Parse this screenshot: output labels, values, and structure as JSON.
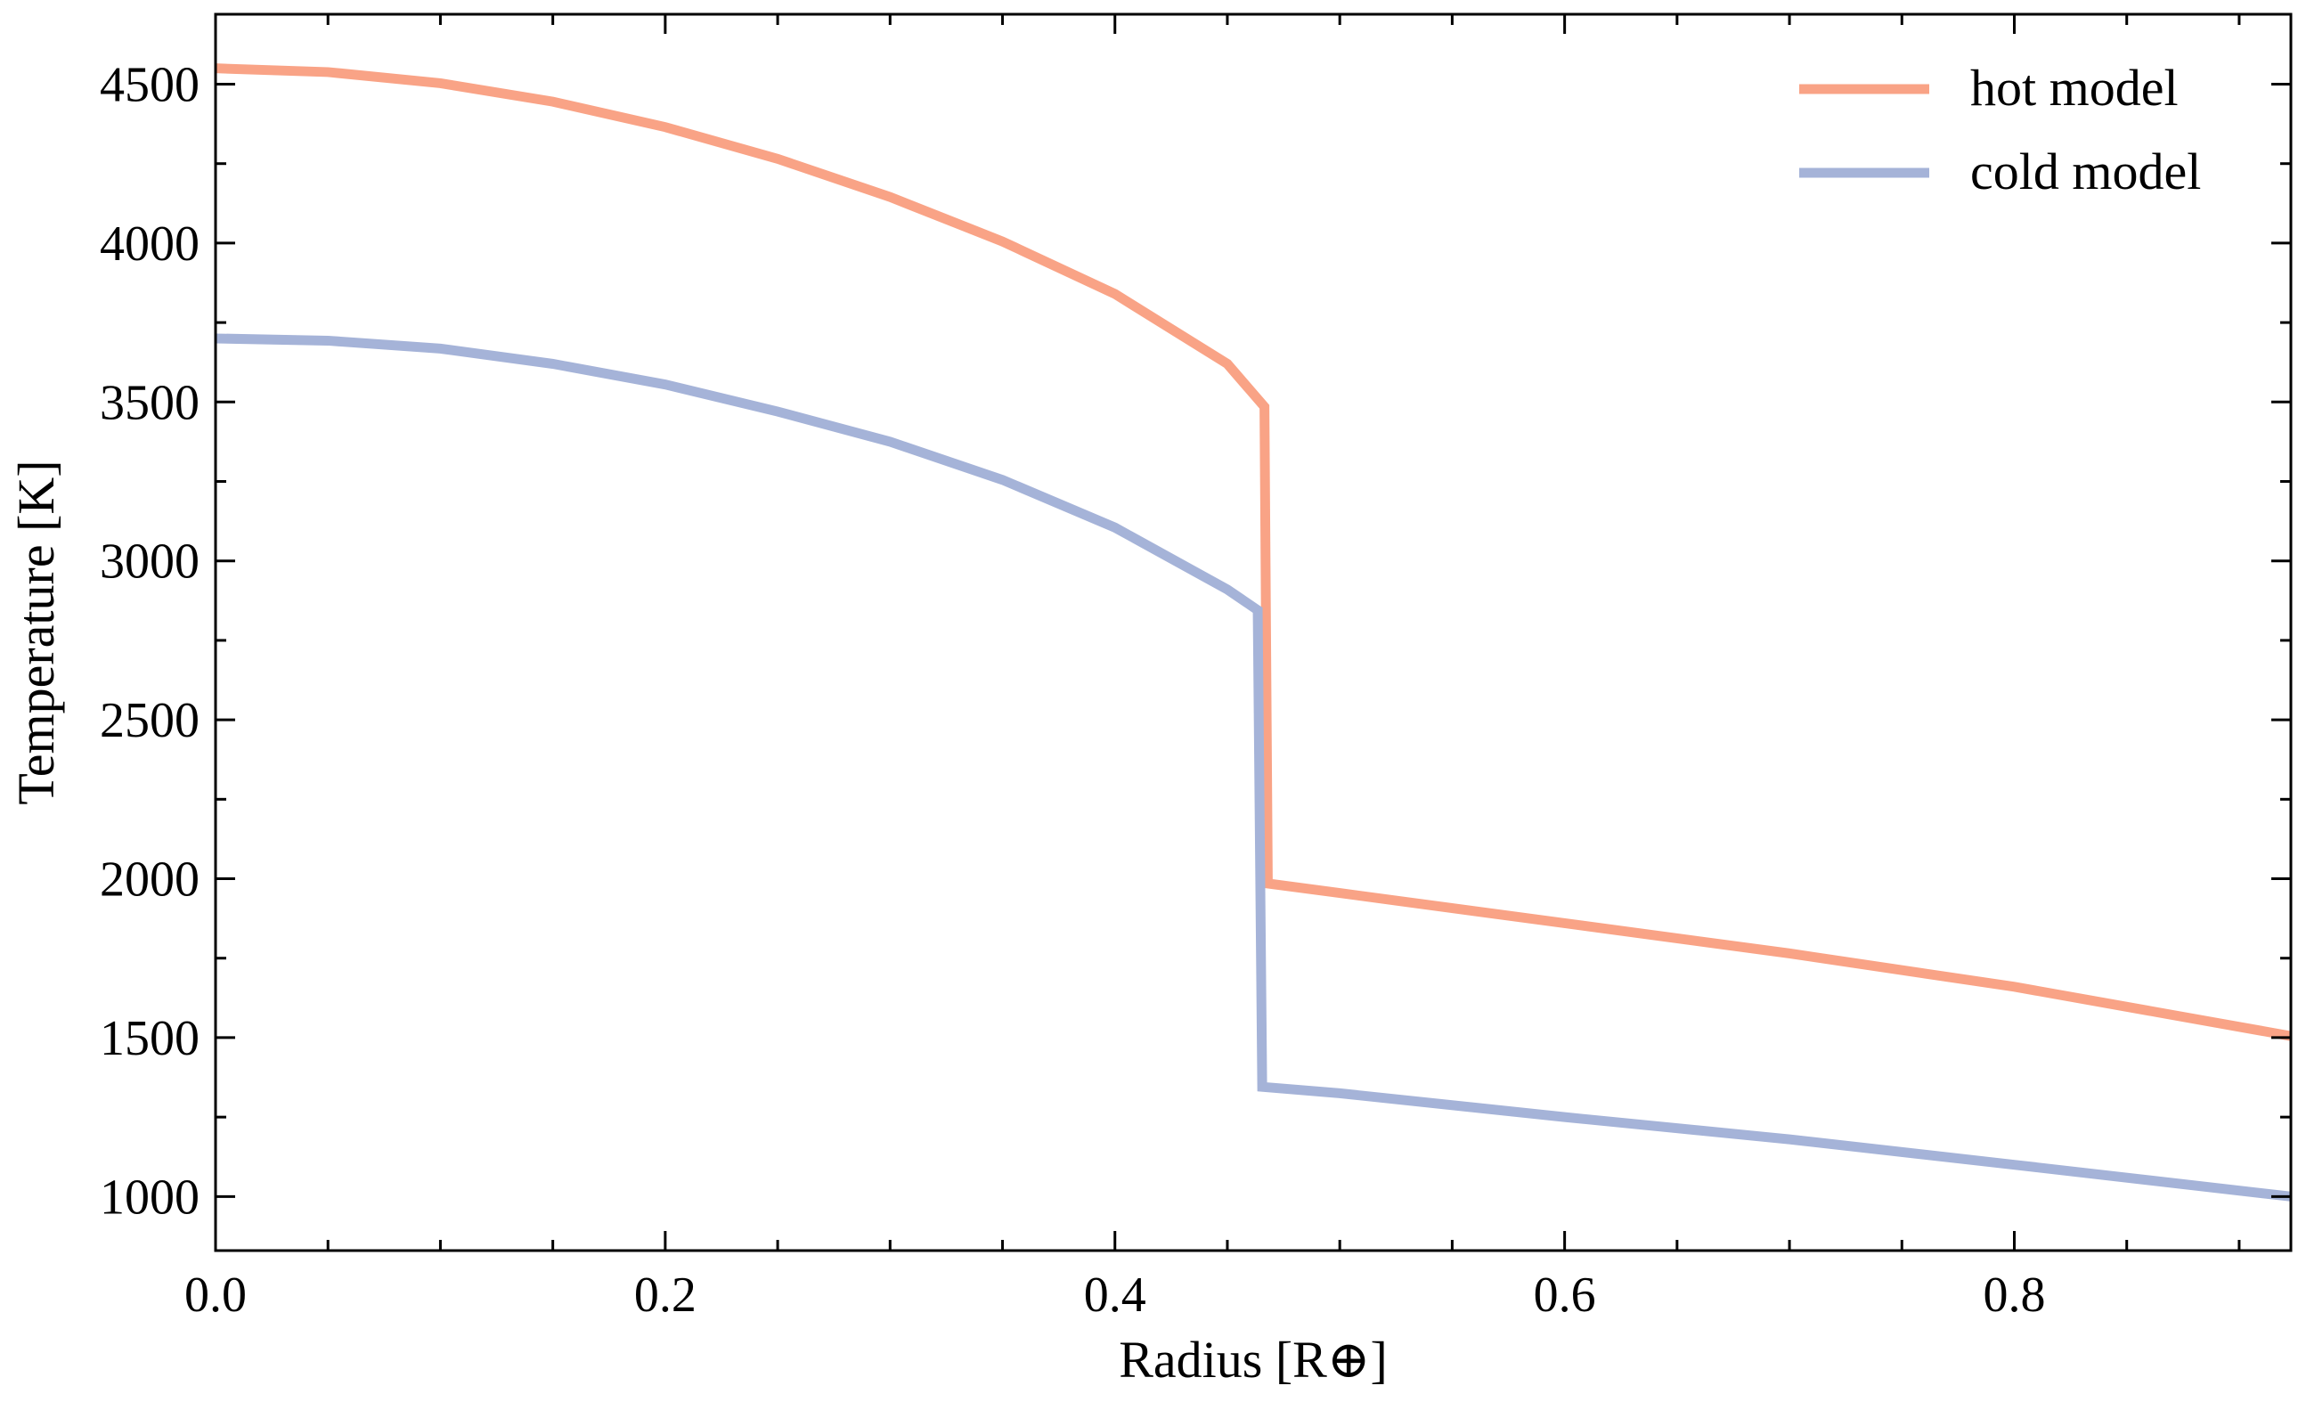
{
  "chart_data": {
    "type": "line",
    "title": "",
    "xlabel": "Radius [R⊕]",
    "ylabel": "Temperature [K]",
    "xlim": [
      0.0,
      0.923
    ],
    "ylim": [
      830,
      4720
    ],
    "x_major_ticks": [
      0.0,
      0.2,
      0.4,
      0.6,
      0.8
    ],
    "x_minor_step": 0.05,
    "y_major_ticks": [
      1000,
      1500,
      2000,
      2500,
      3000,
      3500,
      4000,
      4500
    ],
    "y_minor_step": 250,
    "x_tick_labels": [
      "0.0",
      "0.2",
      "0.4",
      "0.6",
      "0.8"
    ],
    "y_tick_labels": [
      "1000",
      "1500",
      "2000",
      "2500",
      "3000",
      "3500",
      "4000",
      "4500"
    ],
    "tick_direction": "in",
    "ticks_on_all_sides": true,
    "grid": false,
    "legend": {
      "position": "top-right",
      "frame": false
    },
    "series": [
      {
        "name": "hot model",
        "color": "#F9A386",
        "points": [
          [
            0.0,
            4550
          ],
          [
            0.05,
            4538
          ],
          [
            0.1,
            4503
          ],
          [
            0.15,
            4445
          ],
          [
            0.2,
            4365
          ],
          [
            0.25,
            4265
          ],
          [
            0.3,
            4145
          ],
          [
            0.35,
            4005
          ],
          [
            0.4,
            3840
          ],
          [
            0.45,
            3620
          ],
          [
            0.4665,
            3485
          ],
          [
            0.4665,
            3485
          ],
          [
            0.468,
            1985
          ],
          [
            0.5,
            1955
          ],
          [
            0.6,
            1860
          ],
          [
            0.7,
            1765
          ],
          [
            0.8,
            1660
          ],
          [
            0.923,
            1505
          ]
        ]
      },
      {
        "name": "cold model",
        "color": "#A5B3D8",
        "points": [
          [
            0.0,
            3700
          ],
          [
            0.05,
            3693
          ],
          [
            0.1,
            3668
          ],
          [
            0.15,
            3620
          ],
          [
            0.2,
            3555
          ],
          [
            0.25,
            3470
          ],
          [
            0.3,
            3375
          ],
          [
            0.35,
            3255
          ],
          [
            0.4,
            3105
          ],
          [
            0.45,
            2910
          ],
          [
            0.4635,
            2845
          ],
          [
            0.4635,
            2845
          ],
          [
            0.4655,
            1345
          ],
          [
            0.5,
            1325
          ],
          [
            0.6,
            1250
          ],
          [
            0.7,
            1180
          ],
          [
            0.8,
            1100
          ],
          [
            0.923,
            1000
          ]
        ]
      }
    ]
  }
}
